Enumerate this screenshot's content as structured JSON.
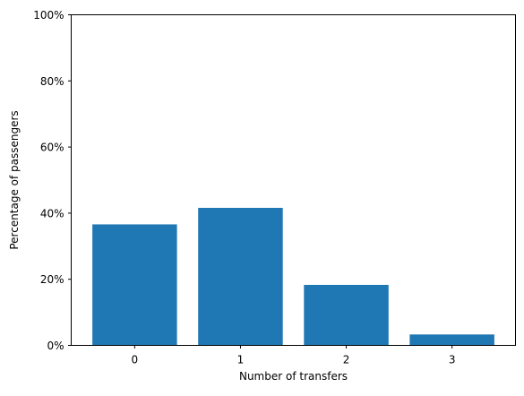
{
  "chart_data": {
    "type": "bar",
    "title": "",
    "xlabel": "Number of transfers",
    "ylabel": "Percentage of passengers",
    "categories": [
      "0",
      "1",
      "2",
      "3"
    ],
    "values": [
      36.6,
      41.6,
      18.3,
      3.3
    ],
    "ylim": [
      0,
      100
    ],
    "yticks": [
      0,
      20,
      40,
      60,
      80,
      100
    ],
    "ytick_labels": [
      "0%",
      "20%",
      "40%",
      "60%",
      "80%",
      "100%"
    ],
    "grid": false,
    "legend": "none",
    "bar_color": "#1f77b4"
  }
}
